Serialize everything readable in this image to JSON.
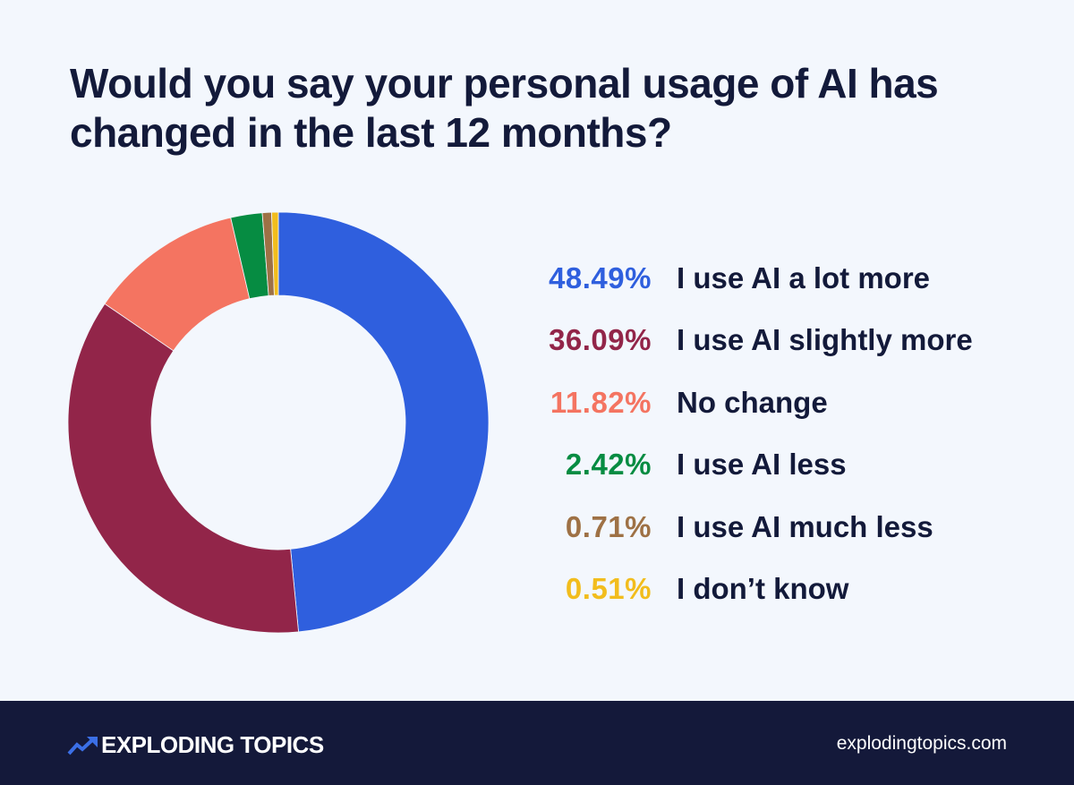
{
  "title": "Would you say your personal usage of AI has changed in the last 12 months?",
  "legend": [
    {
      "pct": "48.49%",
      "label": "I use AI a lot more",
      "color": "#2f5fde"
    },
    {
      "pct": "36.09%",
      "label": "I use AI slightly more",
      "color": "#922549"
    },
    {
      "pct": "11.82%",
      "label": "No change",
      "color": "#f47461"
    },
    {
      "pct": "2.42%",
      "label": "I use AI less",
      "color": "#068c42"
    },
    {
      "pct": "0.71%",
      "label": "I use AI much less",
      "color": "#9e7145"
    },
    {
      "pct": "0.51%",
      "label": "I don’t know",
      "color": "#f2bd1d"
    }
  ],
  "footer": {
    "brand": "EXPLODING TOPICS",
    "website": "explodingtopics.com",
    "logo_icon": "trending-up-arrow-icon"
  },
  "colors": {
    "background": "#f3f7fd",
    "footer_bg": "#14193a",
    "title_text": "#131a3a",
    "logo_accent": "#3b6fe6"
  },
  "chart_data": {
    "type": "pie",
    "subtype": "donut",
    "title": "Would you say your personal usage of AI has changed in the last 12 months?",
    "categories": [
      "I use AI a lot more",
      "I use AI slightly more",
      "No change",
      "I use AI less",
      "I use AI much less",
      "I don’t know"
    ],
    "values": [
      48.49,
      36.09,
      11.82,
      2.42,
      0.71,
      0.51
    ],
    "colors": [
      "#2f5fde",
      "#922549",
      "#f47461",
      "#068c42",
      "#9e7145",
      "#f2bd1d"
    ],
    "start_angle": "12 o'clock, clockwise",
    "legend_position": "right",
    "unit": "%"
  }
}
